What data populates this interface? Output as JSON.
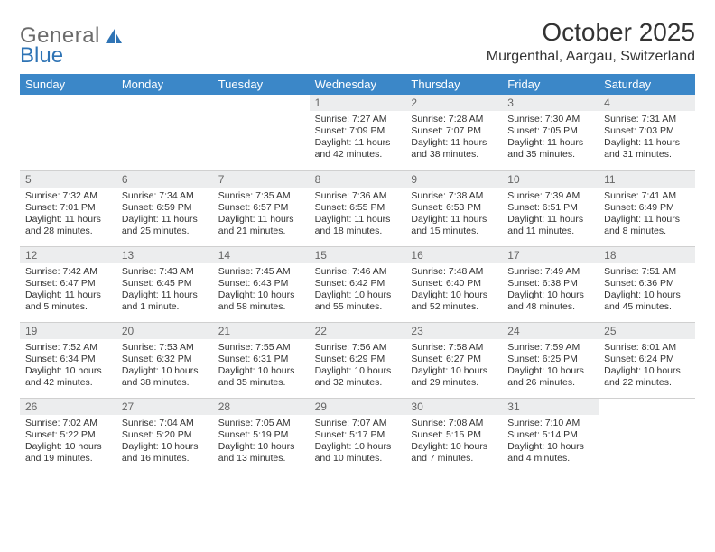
{
  "brand": {
    "part1": "General",
    "part2": "Blue"
  },
  "title": "October 2025",
  "location": "Murgenthal, Aargau, Switzerland",
  "colors": {
    "header_bg": "#3b87c8",
    "header_text": "#ffffff",
    "daynum_bg": "#ecedee",
    "daynum_text": "#666666",
    "body_text": "#333333",
    "rule": "#2f74b5",
    "logo_gray": "#6b6b6b",
    "logo_blue": "#2f74b5"
  },
  "dayNames": [
    "Sunday",
    "Monday",
    "Tuesday",
    "Wednesday",
    "Thursday",
    "Friday",
    "Saturday"
  ],
  "weeks": [
    [
      {
        "n": "",
        "sr": "",
        "ss": "",
        "dl": ""
      },
      {
        "n": "",
        "sr": "",
        "ss": "",
        "dl": ""
      },
      {
        "n": "",
        "sr": "",
        "ss": "",
        "dl": ""
      },
      {
        "n": "1",
        "sr": "Sunrise: 7:27 AM",
        "ss": "Sunset: 7:09 PM",
        "dl": "Daylight: 11 hours and 42 minutes."
      },
      {
        "n": "2",
        "sr": "Sunrise: 7:28 AM",
        "ss": "Sunset: 7:07 PM",
        "dl": "Daylight: 11 hours and 38 minutes."
      },
      {
        "n": "3",
        "sr": "Sunrise: 7:30 AM",
        "ss": "Sunset: 7:05 PM",
        "dl": "Daylight: 11 hours and 35 minutes."
      },
      {
        "n": "4",
        "sr": "Sunrise: 7:31 AM",
        "ss": "Sunset: 7:03 PM",
        "dl": "Daylight: 11 hours and 31 minutes."
      }
    ],
    [
      {
        "n": "5",
        "sr": "Sunrise: 7:32 AM",
        "ss": "Sunset: 7:01 PM",
        "dl": "Daylight: 11 hours and 28 minutes."
      },
      {
        "n": "6",
        "sr": "Sunrise: 7:34 AM",
        "ss": "Sunset: 6:59 PM",
        "dl": "Daylight: 11 hours and 25 minutes."
      },
      {
        "n": "7",
        "sr": "Sunrise: 7:35 AM",
        "ss": "Sunset: 6:57 PM",
        "dl": "Daylight: 11 hours and 21 minutes."
      },
      {
        "n": "8",
        "sr": "Sunrise: 7:36 AM",
        "ss": "Sunset: 6:55 PM",
        "dl": "Daylight: 11 hours and 18 minutes."
      },
      {
        "n": "9",
        "sr": "Sunrise: 7:38 AM",
        "ss": "Sunset: 6:53 PM",
        "dl": "Daylight: 11 hours and 15 minutes."
      },
      {
        "n": "10",
        "sr": "Sunrise: 7:39 AM",
        "ss": "Sunset: 6:51 PM",
        "dl": "Daylight: 11 hours and 11 minutes."
      },
      {
        "n": "11",
        "sr": "Sunrise: 7:41 AM",
        "ss": "Sunset: 6:49 PM",
        "dl": "Daylight: 11 hours and 8 minutes."
      }
    ],
    [
      {
        "n": "12",
        "sr": "Sunrise: 7:42 AM",
        "ss": "Sunset: 6:47 PM",
        "dl": "Daylight: 11 hours and 5 minutes."
      },
      {
        "n": "13",
        "sr": "Sunrise: 7:43 AM",
        "ss": "Sunset: 6:45 PM",
        "dl": "Daylight: 11 hours and 1 minute."
      },
      {
        "n": "14",
        "sr": "Sunrise: 7:45 AM",
        "ss": "Sunset: 6:43 PM",
        "dl": "Daylight: 10 hours and 58 minutes."
      },
      {
        "n": "15",
        "sr": "Sunrise: 7:46 AM",
        "ss": "Sunset: 6:42 PM",
        "dl": "Daylight: 10 hours and 55 minutes."
      },
      {
        "n": "16",
        "sr": "Sunrise: 7:48 AM",
        "ss": "Sunset: 6:40 PM",
        "dl": "Daylight: 10 hours and 52 minutes."
      },
      {
        "n": "17",
        "sr": "Sunrise: 7:49 AM",
        "ss": "Sunset: 6:38 PM",
        "dl": "Daylight: 10 hours and 48 minutes."
      },
      {
        "n": "18",
        "sr": "Sunrise: 7:51 AM",
        "ss": "Sunset: 6:36 PM",
        "dl": "Daylight: 10 hours and 45 minutes."
      }
    ],
    [
      {
        "n": "19",
        "sr": "Sunrise: 7:52 AM",
        "ss": "Sunset: 6:34 PM",
        "dl": "Daylight: 10 hours and 42 minutes."
      },
      {
        "n": "20",
        "sr": "Sunrise: 7:53 AM",
        "ss": "Sunset: 6:32 PM",
        "dl": "Daylight: 10 hours and 38 minutes."
      },
      {
        "n": "21",
        "sr": "Sunrise: 7:55 AM",
        "ss": "Sunset: 6:31 PM",
        "dl": "Daylight: 10 hours and 35 minutes."
      },
      {
        "n": "22",
        "sr": "Sunrise: 7:56 AM",
        "ss": "Sunset: 6:29 PM",
        "dl": "Daylight: 10 hours and 32 minutes."
      },
      {
        "n": "23",
        "sr": "Sunrise: 7:58 AM",
        "ss": "Sunset: 6:27 PM",
        "dl": "Daylight: 10 hours and 29 minutes."
      },
      {
        "n": "24",
        "sr": "Sunrise: 7:59 AM",
        "ss": "Sunset: 6:25 PM",
        "dl": "Daylight: 10 hours and 26 minutes."
      },
      {
        "n": "25",
        "sr": "Sunrise: 8:01 AM",
        "ss": "Sunset: 6:24 PM",
        "dl": "Daylight: 10 hours and 22 minutes."
      }
    ],
    [
      {
        "n": "26",
        "sr": "Sunrise: 7:02 AM",
        "ss": "Sunset: 5:22 PM",
        "dl": "Daylight: 10 hours and 19 minutes."
      },
      {
        "n": "27",
        "sr": "Sunrise: 7:04 AM",
        "ss": "Sunset: 5:20 PM",
        "dl": "Daylight: 10 hours and 16 minutes."
      },
      {
        "n": "28",
        "sr": "Sunrise: 7:05 AM",
        "ss": "Sunset: 5:19 PM",
        "dl": "Daylight: 10 hours and 13 minutes."
      },
      {
        "n": "29",
        "sr": "Sunrise: 7:07 AM",
        "ss": "Sunset: 5:17 PM",
        "dl": "Daylight: 10 hours and 10 minutes."
      },
      {
        "n": "30",
        "sr": "Sunrise: 7:08 AM",
        "ss": "Sunset: 5:15 PM",
        "dl": "Daylight: 10 hours and 7 minutes."
      },
      {
        "n": "31",
        "sr": "Sunrise: 7:10 AM",
        "ss": "Sunset: 5:14 PM",
        "dl": "Daylight: 10 hours and 4 minutes."
      },
      {
        "n": "",
        "sr": "",
        "ss": "",
        "dl": ""
      }
    ]
  ]
}
